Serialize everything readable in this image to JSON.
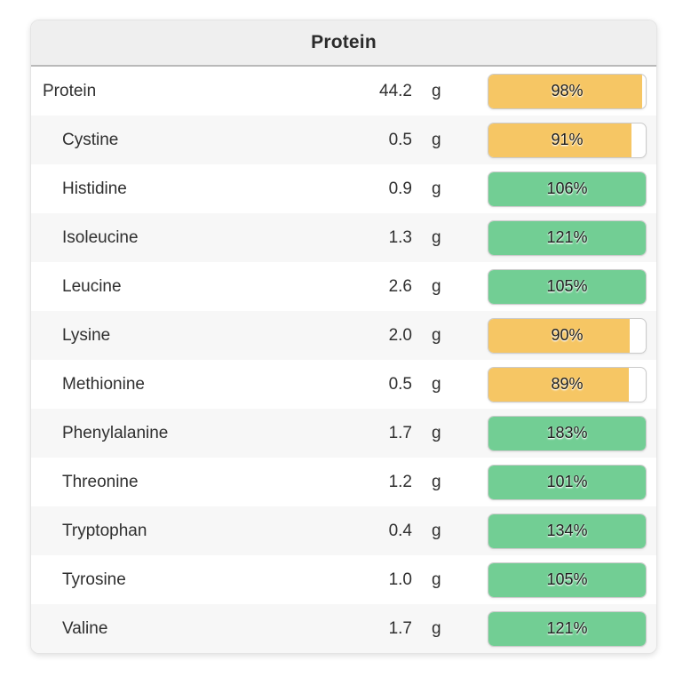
{
  "card": {
    "title": "Protein",
    "colors": {
      "met_target": "#72ce94",
      "under_target": "#f6c664",
      "bar_border": "#cbcbcb",
      "header_bg": "#efefef",
      "alt_row_bg": "#f7f7f7"
    },
    "rows": [
      {
        "name": "Protein",
        "value": "44.2",
        "unit": "g",
        "percent": 98,
        "percent_label": "98%",
        "indent": false
      },
      {
        "name": "Cystine",
        "value": "0.5",
        "unit": "g",
        "percent": 91,
        "percent_label": "91%",
        "indent": true
      },
      {
        "name": "Histidine",
        "value": "0.9",
        "unit": "g",
        "percent": 106,
        "percent_label": "106%",
        "indent": true
      },
      {
        "name": "Isoleucine",
        "value": "1.3",
        "unit": "g",
        "percent": 121,
        "percent_label": "121%",
        "indent": true
      },
      {
        "name": "Leucine",
        "value": "2.6",
        "unit": "g",
        "percent": 105,
        "percent_label": "105%",
        "indent": true
      },
      {
        "name": "Lysine",
        "value": "2.0",
        "unit": "g",
        "percent": 90,
        "percent_label": "90%",
        "indent": true
      },
      {
        "name": "Methionine",
        "value": "0.5",
        "unit": "g",
        "percent": 89,
        "percent_label": "89%",
        "indent": true
      },
      {
        "name": "Phenylalanine",
        "value": "1.7",
        "unit": "g",
        "percent": 183,
        "percent_label": "183%",
        "indent": true
      },
      {
        "name": "Threonine",
        "value": "1.2",
        "unit": "g",
        "percent": 101,
        "percent_label": "101%",
        "indent": true
      },
      {
        "name": "Tryptophan",
        "value": "0.4",
        "unit": "g",
        "percent": 134,
        "percent_label": "134%",
        "indent": true
      },
      {
        "name": "Tyrosine",
        "value": "1.0",
        "unit": "g",
        "percent": 105,
        "percent_label": "105%",
        "indent": true
      },
      {
        "name": "Valine",
        "value": "1.7",
        "unit": "g",
        "percent": 121,
        "percent_label": "121%",
        "indent": true
      }
    ]
  }
}
